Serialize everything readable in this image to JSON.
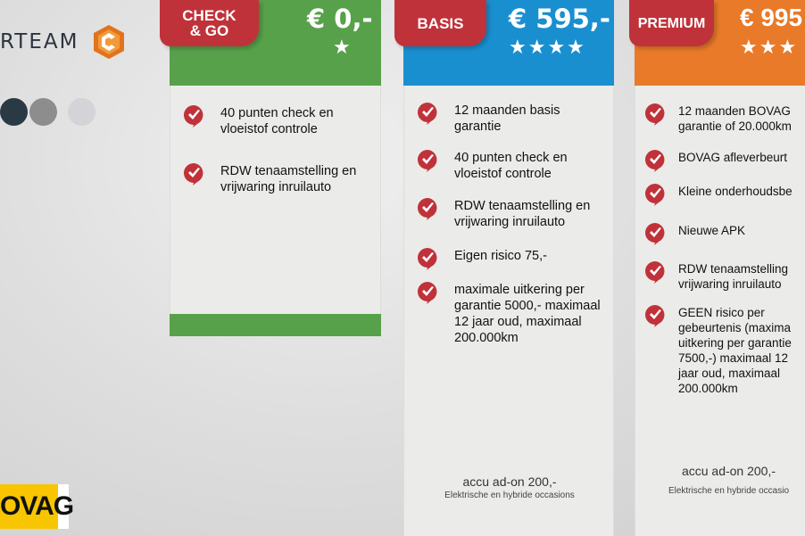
{
  "brand": {
    "logo_text": "RTEAM",
    "logo_icon": "orange-hexagon-c",
    "bovag_badge": "OVAG"
  },
  "slider_dots": [
    {
      "color": "#2a3a45",
      "active": true
    },
    {
      "color": "#8d8d8d",
      "active": false
    },
    {
      "color": "#d3d3d8",
      "active": false
    }
  ],
  "packages": [
    {
      "name": "CHECK & GO",
      "name_line1": "CHECK",
      "name_line2": "& GO",
      "price": "€ 0,-",
      "stars": "★",
      "color": "#57a14a",
      "features": [
        "40 punten check en vloeistof controle",
        "RDW tenaamstelling  en vrijwaring inruilauto"
      ]
    },
    {
      "name": "BASIS",
      "price": "€ 595,-",
      "stars": "★★★★",
      "color": "#1a8fd0",
      "features": [
        "12 maanden basis garantie",
        "40 punten check en vloeistof controle",
        "RDW tenaamstelling  en vrijwaring inruilauto",
        "Eigen risico 75,-",
        "maximale uitkering per garantie 5000,- maximaal 12 jaar oud, maximaal 200.000km"
      ],
      "addon": "accu ad-on  200,-",
      "addon_note": "Elektrische en hybride occasions"
    },
    {
      "name": "PREMIUM",
      "price": "€ 995",
      "stars": "★★★",
      "color": "#e87a2a",
      "features": [
        "12  maanden  BOVAG garantie of 20.000km",
        "BOVAG afleverbeurt",
        "Kleine onderhoudsbe",
        "Nieuwe APK",
        "RDW tenaamstelling vrijwaring inruilauto",
        "GEEN risico per gebeurtenis (maxima uitkering per garantie 7500,-) maximaal 12 jaar oud, maximaal 200.000km"
      ],
      "addon": "accu ad-on  200,-",
      "addon_note": "Elektrische en hybride occasio"
    }
  ],
  "colors": {
    "tag_red": "#c0323a",
    "check_red": "#c0323a"
  }
}
